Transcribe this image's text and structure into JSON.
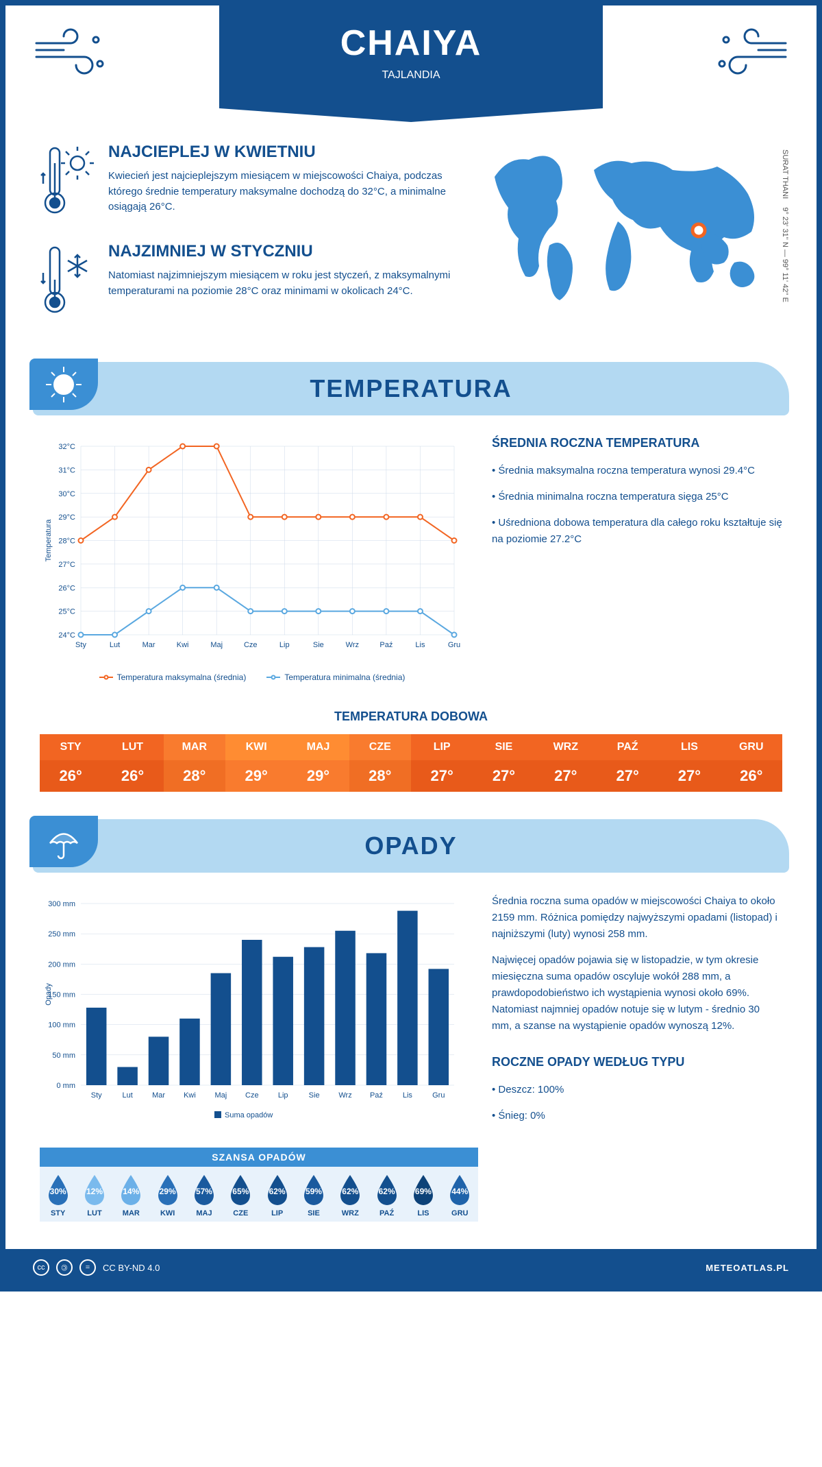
{
  "header": {
    "title": "CHAIYA",
    "subtitle": "TAJLANDIA"
  },
  "coords": "9° 23' 31'' N — 99° 11' 42'' E",
  "region": "SURAT THANI",
  "facts": {
    "warm": {
      "title": "NAJCIEPLEJ W KWIETNIU",
      "body": "Kwiecień jest najcieplejszym miesiącem w miejscowości Chaiya, podczas którego średnie temperatury maksymalne dochodzą do 32°C, a minimalne osiągają 26°C."
    },
    "cold": {
      "title": "NAJZIMNIEJ W STYCZNIU",
      "body": "Natomiast najzimniejszym miesiącem w roku jest styczeń, z maksymalnymi temperaturami na poziomie 28°C oraz minimami w okolicach 24°C."
    }
  },
  "temp_section": {
    "title": "TEMPERATURA",
    "info_title": "ŚREDNIA ROCZNA TEMPERATURA",
    "bullets": [
      "• Średnia maksymalna roczna temperatura wynosi 29.4°C",
      "• Średnia minimalna roczna temperatura sięga 25°C",
      "• Uśredniona dobowa temperatura dla całego roku kształtuje się na poziomie 27.2°C"
    ],
    "chart": {
      "type": "line",
      "ylabel": "Temperatura",
      "months": [
        "Sty",
        "Lut",
        "Mar",
        "Kwi",
        "Maj",
        "Cze",
        "Lip",
        "Sie",
        "Wrz",
        "Paź",
        "Lis",
        "Gru"
      ],
      "ylim": [
        24,
        32
      ],
      "ytick_step": 1,
      "series": [
        {
          "name": "Temperatura maksymalna (średnia)",
          "color": "#f26522",
          "values": [
            28,
            29,
            31,
            32,
            32,
            29,
            29,
            29,
            29,
            29,
            29,
            28
          ]
        },
        {
          "name": "Temperatura minimalna (średnia)",
          "color": "#5aa8e0",
          "values": [
            24,
            24,
            25,
            26,
            26,
            25,
            25,
            25,
            25,
            25,
            25,
            24
          ]
        }
      ],
      "grid_color": "#ccd9e8",
      "background": "#ffffff",
      "label_fontsize": 11
    },
    "daily": {
      "title": "TEMPERATURA DOBOWA",
      "months": [
        "STY",
        "LUT",
        "MAR",
        "KWI",
        "MAJ",
        "CZE",
        "LIP",
        "SIE",
        "WRZ",
        "PAŹ",
        "LIS",
        "GRU"
      ],
      "values": [
        "26°",
        "26°",
        "28°",
        "29°",
        "29°",
        "28°",
        "27°",
        "27°",
        "27°",
        "27°",
        "27°",
        "26°"
      ],
      "bg_top": [
        "#f26522",
        "#f26522",
        "#f97b2e",
        "#ff8c32",
        "#ff8c32",
        "#f97b2e",
        "#f26522",
        "#f26522",
        "#f26522",
        "#f26522",
        "#f26522",
        "#f26522"
      ],
      "bg_bot": [
        "#e85a1a",
        "#e85a1a",
        "#f06e24",
        "#f97b2e",
        "#f97b2e",
        "#f06e24",
        "#e85a1a",
        "#e85a1a",
        "#e85a1a",
        "#e85a1a",
        "#e85a1a",
        "#e85a1a"
      ]
    }
  },
  "precip_section": {
    "title": "OPADY",
    "para1": "Średnia roczna suma opadów w miejscowości Chaiya to około 2159 mm. Różnica pomiędzy najwyższymi opadami (listopad) i najniższymi (luty) wynosi 258 mm.",
    "para2": "Najwięcej opadów pojawia się w listopadzie, w tym okresie miesięczna suma opadów oscyluje wokół 288 mm, a prawdopodobieństwo ich wystąpienia wynosi około 69%. Natomiast najmniej opadów notuje się w lutym - średnio 30 mm, a szanse na wystąpienie opadów wynoszą 12%.",
    "type_title": "ROCZNE OPADY WEDŁUG TYPU",
    "types": [
      "• Deszcz: 100%",
      "• Śnieg: 0%"
    ],
    "chart": {
      "type": "bar",
      "ylabel": "Opady",
      "legend": "Suma opadów",
      "months": [
        "Sty",
        "Lut",
        "Mar",
        "Kwi",
        "Maj",
        "Cze",
        "Lip",
        "Sie",
        "Wrz",
        "Paź",
        "Lis",
        "Gru"
      ],
      "values": [
        128,
        30,
        80,
        110,
        185,
        240,
        212,
        228,
        255,
        218,
        288,
        192
      ],
      "ylim": [
        0,
        300
      ],
      "ytick_step": 50,
      "bar_color": "#134f8e",
      "bar_width": 0.65,
      "grid_color": "#ccd9e8",
      "background": "#ffffff",
      "label_fontsize": 11
    },
    "chance": {
      "title": "SZANSA OPADÓW",
      "months": [
        "STY",
        "LUT",
        "MAR",
        "KWI",
        "MAJ",
        "CZE",
        "LIP",
        "SIE",
        "WRZ",
        "PAŹ",
        "LIS",
        "GRU"
      ],
      "values": [
        "30%",
        "12%",
        "14%",
        "29%",
        "57%",
        "65%",
        "62%",
        "59%",
        "62%",
        "62%",
        "69%",
        "44%"
      ],
      "colors": [
        "#2970b8",
        "#7abaed",
        "#6bb0e8",
        "#2970b8",
        "#1a5a9e",
        "#134f8e",
        "#134f8e",
        "#1a5a9e",
        "#134f8e",
        "#134f8e",
        "#0d4278",
        "#1f63aa"
      ]
    }
  },
  "footer": {
    "license": "CC BY-ND 4.0",
    "site": "METEOATLAS.PL"
  },
  "colors": {
    "primary": "#134f8e",
    "light_blue": "#b3d9f2",
    "mid_blue": "#3b8fd4",
    "map_blue": "#3b8fd4",
    "marker": "#f26522"
  }
}
